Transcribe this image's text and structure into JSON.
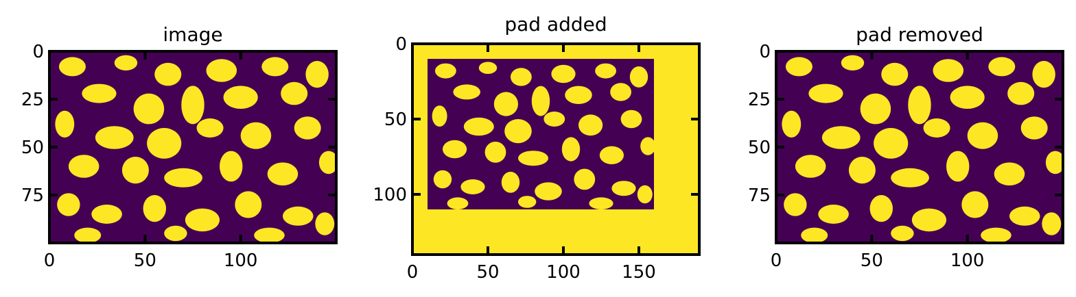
{
  "chart_data": [
    {
      "type": "heatmap",
      "title": "image",
      "xlim": [
        0,
        150
      ],
      "ylim": [
        100,
        0
      ],
      "xticks": [
        0,
        50,
        100
      ],
      "yticks": [
        0,
        25,
        50,
        75
      ],
      "colors": {
        "low": "#440154",
        "high": "#fde725"
      },
      "grid": false
    },
    {
      "type": "heatmap",
      "title": "pad added",
      "xlim": [
        0,
        190
      ],
      "ylim": [
        140,
        0
      ],
      "xticks": [
        0,
        50,
        100,
        150
      ],
      "yticks": [
        0,
        50,
        100
      ],
      "inner_region": {
        "x": [
          10,
          160
        ],
        "y": [
          10,
          110
        ]
      },
      "colors": {
        "low": "#440154",
        "high": "#fde725"
      },
      "grid": false
    },
    {
      "type": "heatmap",
      "title": "pad removed",
      "xlim": [
        0,
        150
      ],
      "ylim": [
        100,
        0
      ],
      "xticks": [
        0,
        50,
        100
      ],
      "yticks": [
        0,
        25,
        50,
        75
      ],
      "colors": {
        "low": "#440154",
        "high": "#fde725"
      },
      "grid": false
    }
  ]
}
